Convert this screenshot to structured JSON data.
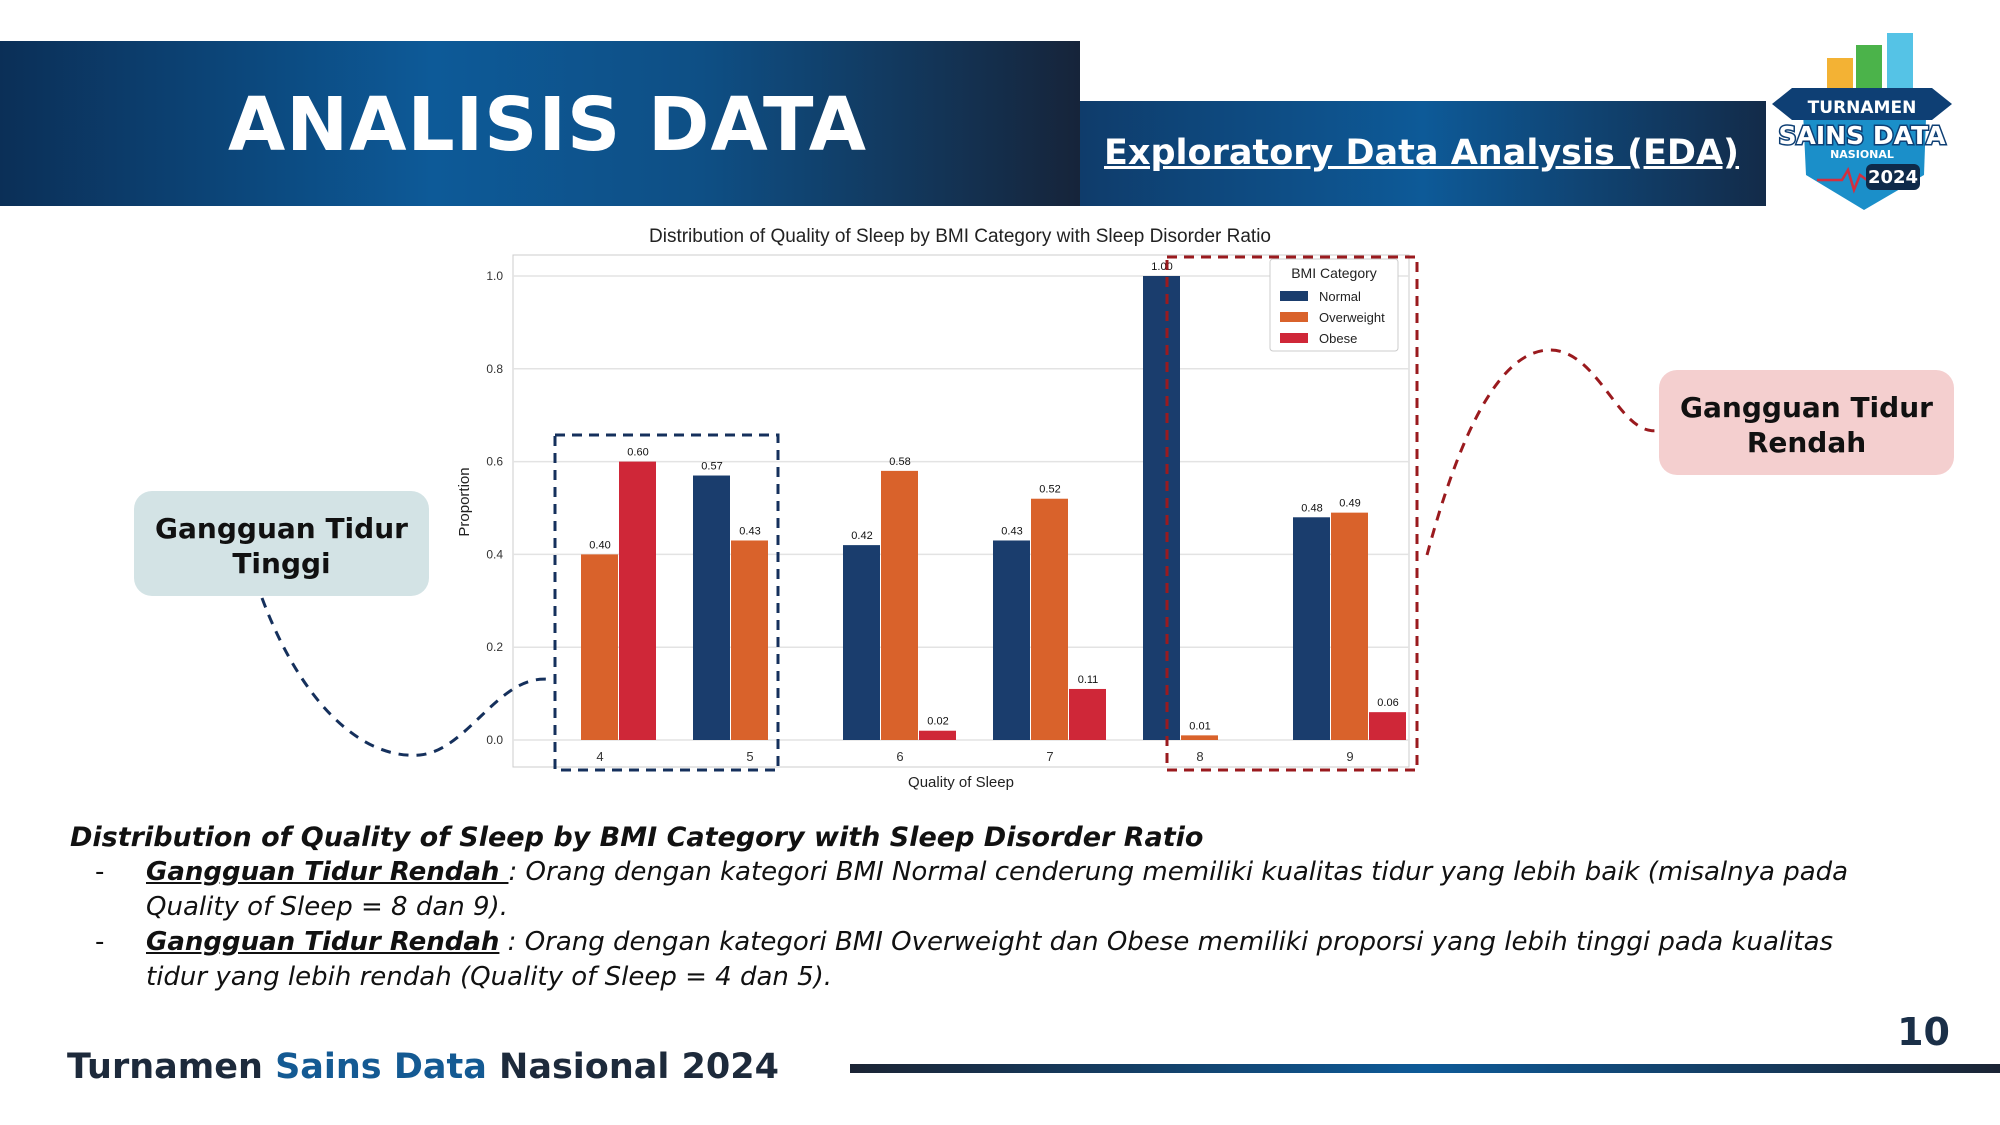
{
  "header": {
    "title": "ANALISIS DATA",
    "subtitle": "Exploratory Data Analysis (EDA)"
  },
  "logo": {
    "line1": "TURNAMEN",
    "line2": "SAINS DATA",
    "line3": "NASIONAL",
    "line4": "2024"
  },
  "callouts": {
    "left": "Gangguan Tidur Tinggi",
    "right": "Gangguan Tidur Rendah"
  },
  "chart_data": {
    "type": "bar",
    "title": "Distribution of Quality of Sleep by BMI Category with Sleep Disorder Ratio",
    "xlabel": "Quality of Sleep",
    "ylabel": "Proportion",
    "categories": [
      "4",
      "5",
      "6",
      "7",
      "8",
      "9"
    ],
    "ylim": [
      0,
      1.05
    ],
    "yticks": [
      "0.0",
      "0.2",
      "0.4",
      "0.6",
      "0.8",
      "1.0"
    ],
    "grid": true,
    "legend_title": "BMI Category",
    "legend_position": "top-right",
    "series": [
      {
        "name": "Normal",
        "color": "#1a3d6d",
        "values": [
          null,
          0.57,
          0.42,
          0.43,
          1.0,
          0.48
        ],
        "labels": [
          null,
          "0.57",
          "0.42",
          "0.43",
          "1.00",
          "0.48"
        ]
      },
      {
        "name": "Overweight",
        "color": "#d9622b",
        "values": [
          0.4,
          0.43,
          0.58,
          0.52,
          0.01,
          0.49
        ],
        "labels": [
          "0.40",
          "0.43",
          "0.58",
          "0.52",
          "0.01",
          "0.49"
        ]
      },
      {
        "name": "Obese",
        "color": "#cf2738",
        "values": [
          0.6,
          null,
          0.02,
          0.11,
          null,
          0.06
        ],
        "labels": [
          "0.60",
          null,
          "0.02",
          "0.11",
          null,
          "0.06"
        ]
      }
    ]
  },
  "caption": "Distribution of Quality of Sleep by BMI Category with Sleep Disorder Ratio",
  "bullets": [
    {
      "dash": "-",
      "term": "Gangguan Tidur Rendah ",
      "text": ": Orang dengan kategori BMI Normal cenderung memiliki kualitas tidur yang lebih baik (misalnya pada Quality of Sleep = 8 dan 9)."
    },
    {
      "dash": "-",
      "term": "Gangguan Tidur Rendah",
      "text": " : Orang dengan kategori BMI Overweight dan Obese memiliki proporsi yang lebih tinggi pada kualitas tidur yang lebih rendah (Quality of Sleep = 4 dan 5)."
    }
  ],
  "page_number": "10",
  "footer": {
    "part1": "Turnamen ",
    "part2": "Sains Data ",
    "part3": "Nasional 2024"
  }
}
